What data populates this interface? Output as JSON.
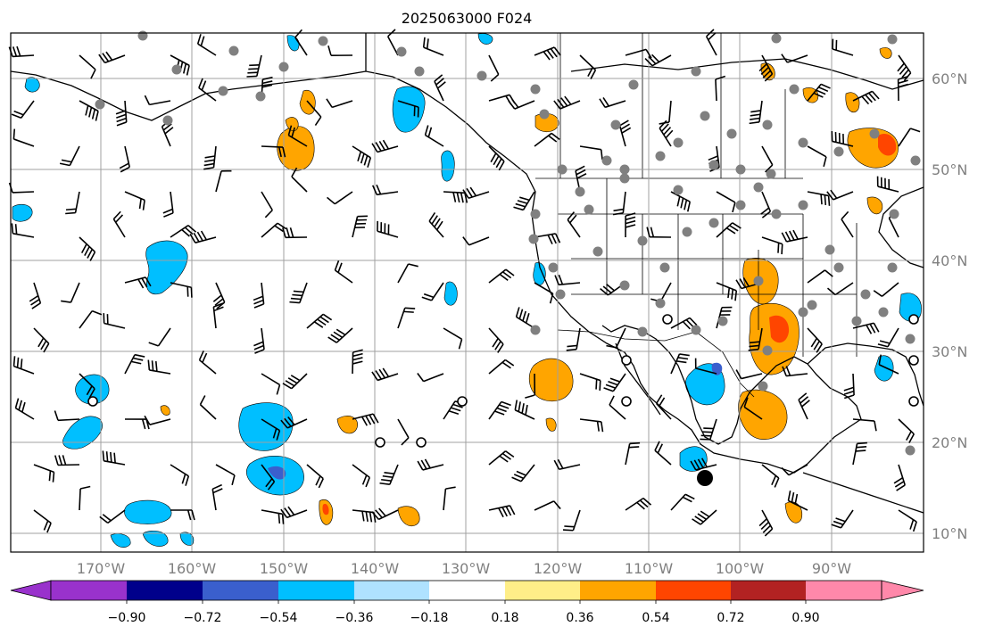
{
  "title": "2025063000 F024",
  "map": {
    "lon_ticks": [
      "170°W",
      "160°W",
      "150°W",
      "140°W",
      "130°W",
      "120°W",
      "110°W",
      "100°W",
      "90°W"
    ],
    "lat_ticks": [
      "60°N",
      "50°N",
      "40°N",
      "30°N",
      "20°N",
      "10°N"
    ],
    "grid": true,
    "colors": {
      "land_outline": "#000000",
      "grid": "#a0a0a0",
      "station_fill": "#808080",
      "negative_fill": "#00bfff",
      "negative_strong_fill": "#3a5fcd",
      "positive_fill": "#ffa500",
      "positive_strong_fill": "#ff4500"
    }
  },
  "colorbar": {
    "labels": [
      "−0.90",
      "−0.72",
      "−0.54",
      "−0.36",
      "−0.18",
      "0.18",
      "0.36",
      "0.54",
      "0.72",
      "0.90"
    ],
    "colors": [
      "#9932cc",
      "#00008b",
      "#3a5fcd",
      "#00bfff",
      "#afe2ff",
      "#ffffff",
      "#ffee88",
      "#ffa500",
      "#ff4500",
      "#b22222",
      "#ff88aa"
    ]
  }
}
